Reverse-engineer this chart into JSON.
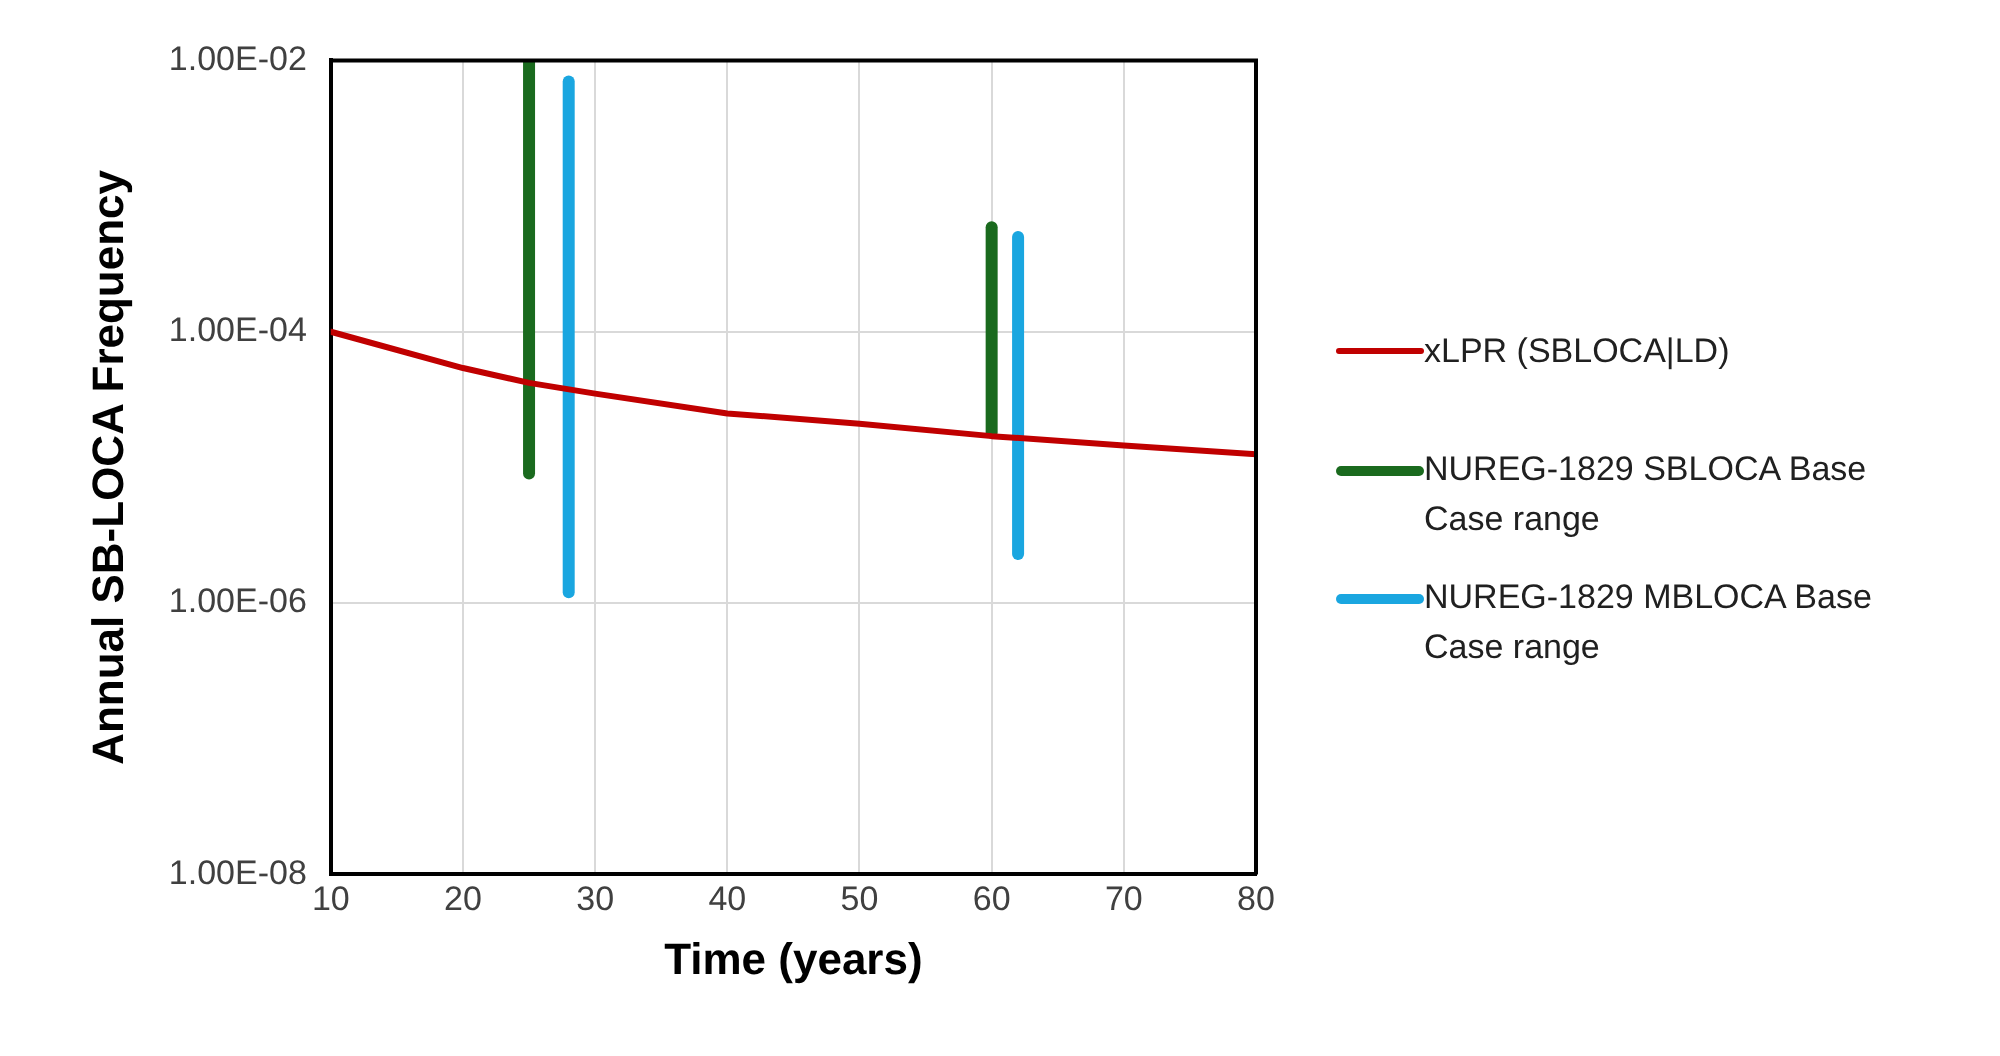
{
  "chart_data": {
    "type": "line",
    "xlabel": "Time (years)",
    "ylabel": "Annual SB-LOCA Frequency",
    "log": "y",
    "xlim": [
      10,
      80
    ],
    "xticks": [
      10,
      20,
      30,
      40,
      50,
      60,
      70,
      80
    ],
    "ylim": [
      1e-08,
      0.01
    ],
    "yticks": [
      {
        "value": 1e-08,
        "label": "1.00E-08"
      },
      {
        "value": 1e-06,
        "label": "1.00E-06"
      },
      {
        "value": 0.0001,
        "label": "1.00E-04"
      },
      {
        "value": 0.01,
        "label": "1.00E-02"
      }
    ],
    "grid": true,
    "legend": "right",
    "marker": "none",
    "line_style": "solid",
    "series": [
      {
        "name": "xLPR (SBLOCA|LD)",
        "color": "#c00000",
        "x": [
          10,
          20,
          25,
          30,
          40,
          50,
          60,
          70,
          80
        ],
        "values": [
          0.0001,
          5.4e-05,
          4.2e-05,
          3.5e-05,
          2.5e-05,
          2.1e-05,
          1.7e-05,
          1.45e-05,
          1.25e-05
        ]
      },
      {
        "name": "NUREG-1829 SBLOCA Base Case range",
        "color": "#1a6a1e",
        "x": [
          25,
          25
        ],
        "values": [
          9e-06,
          0.01
        ]
      },
      {
        "color": "#1a6a1e",
        "x": [
          60,
          60
        ],
        "values": [
          1.8e-05,
          0.00059
        ]
      },
      {
        "name": "NUREG-1829 MBLOCA Base Case range",
        "color": "#1aa6e0",
        "x": [
          28,
          28
        ],
        "values": [
          1.2e-06,
          0.007
        ]
      },
      {
        "color": "#1aa6e0",
        "x": [
          62,
          62
        ],
        "values": [
          2.3e-06,
          0.0005
        ]
      }
    ]
  }
}
